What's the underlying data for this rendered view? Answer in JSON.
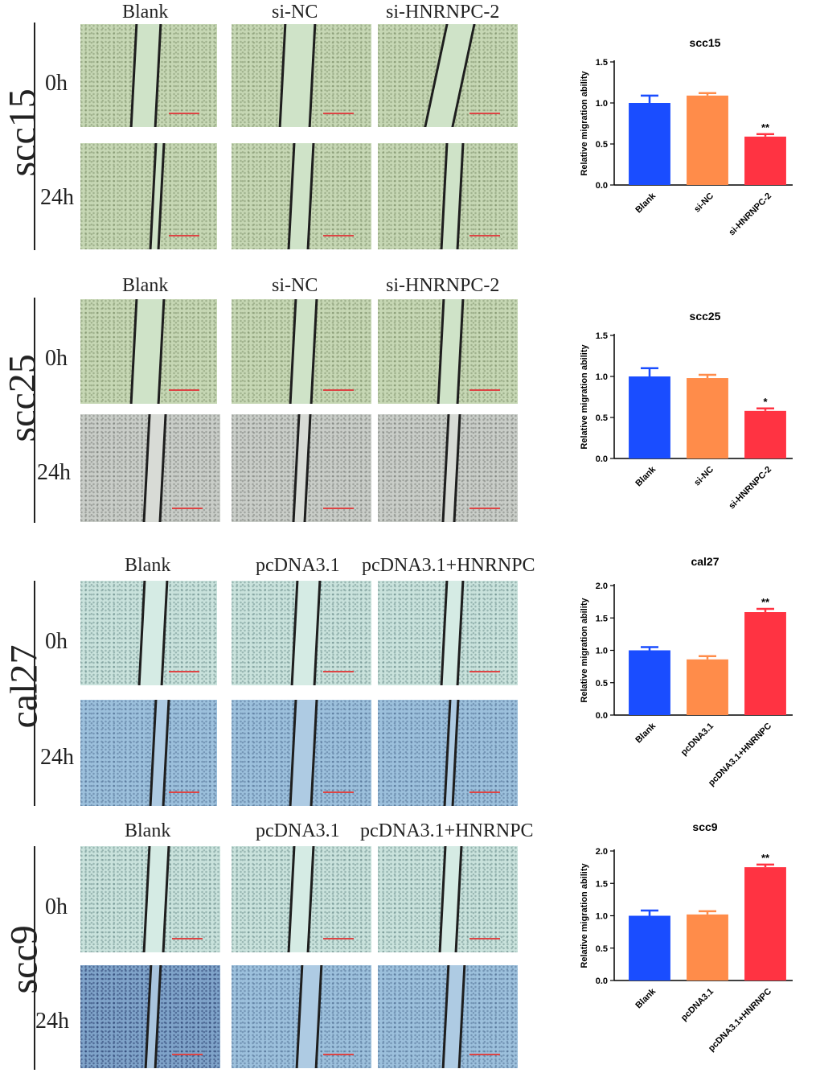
{
  "colors": {
    "blank": "#1a4dff",
    "control": "#ff8c4a",
    "treatment": "#ff3342",
    "greenTex": "#c6d7b4",
    "greenGap": "#cfe3c8",
    "grayTex": "#c9cdc8",
    "blueTex": "#9cc0dc",
    "cyanTex": "#c9e2dc"
  },
  "panels": [
    {
      "cell_line": "scc15",
      "columns": [
        "Blank",
        "si-NC",
        "si-HNRNPC-2"
      ],
      "rows": [
        "0h",
        "24h"
      ]
    },
    {
      "cell_line": "scc25",
      "columns": [
        "Blank",
        "si-NC",
        "si-HNRNPC-2"
      ],
      "rows": [
        "0h",
        "24h"
      ]
    },
    {
      "cell_line": "cal27",
      "columns": [
        "Blank",
        "pcDNA3.1",
        "pcDNA3.1+HNRNPC"
      ],
      "rows": [
        "0h",
        "24h"
      ]
    },
    {
      "cell_line": "scc9",
      "columns": [
        "Blank",
        "pcDNA3.1",
        "pcDNA3.1+HNRNPC"
      ],
      "rows": [
        "0h",
        "24h"
      ]
    }
  ],
  "chart_data": [
    {
      "type": "bar",
      "title": "scc15",
      "ylabel": "Relative migration ability",
      "categories": [
        "Blank",
        "si-NC",
        "si-HNRNPC-2"
      ],
      "values": [
        1.0,
        1.09,
        0.59
      ],
      "errors": [
        0.09,
        0.03,
        0.03
      ],
      "significance": [
        "",
        "",
        "**"
      ],
      "ylim": [
        0,
        1.5
      ],
      "yticks": [
        "0.0",
        "0.5",
        "1.0",
        "1.5"
      ]
    },
    {
      "type": "bar",
      "title": "scc25",
      "ylabel": "Relative migration ability",
      "categories": [
        "Blank",
        "si-NC",
        "si-HNRNPC-2"
      ],
      "values": [
        1.0,
        0.98,
        0.58
      ],
      "errors": [
        0.1,
        0.04,
        0.03
      ],
      "significance": [
        "",
        "",
        "*"
      ],
      "ylim": [
        0,
        1.5
      ],
      "yticks": [
        "0.0",
        "0.5",
        "1.0",
        "1.5"
      ]
    },
    {
      "type": "bar",
      "title": "cal27",
      "ylabel": "Relative migration ability",
      "categories": [
        "Blank",
        "pcDNA3.1",
        "pcDNA3.1+HNRNPC"
      ],
      "values": [
        1.0,
        0.86,
        1.59
      ],
      "errors": [
        0.05,
        0.05,
        0.05
      ],
      "significance": [
        "",
        "",
        "**"
      ],
      "ylim": [
        0,
        2.0
      ],
      "yticks": [
        "0.0",
        "0.5",
        "1.0",
        "1.5",
        "2.0"
      ]
    },
    {
      "type": "bar",
      "title": "scc9",
      "ylabel": "Relative migration ability",
      "categories": [
        "Blank",
        "pcDNA3.1",
        "pcDNA3.1+HNRNPC"
      ],
      "values": [
        1.0,
        1.02,
        1.75
      ],
      "errors": [
        0.08,
        0.05,
        0.04
      ],
      "significance": [
        "",
        "",
        "**"
      ],
      "ylim": [
        0,
        2.0
      ],
      "yticks": [
        "0.0",
        "0.5",
        "1.0",
        "1.5",
        "2.0"
      ]
    }
  ]
}
